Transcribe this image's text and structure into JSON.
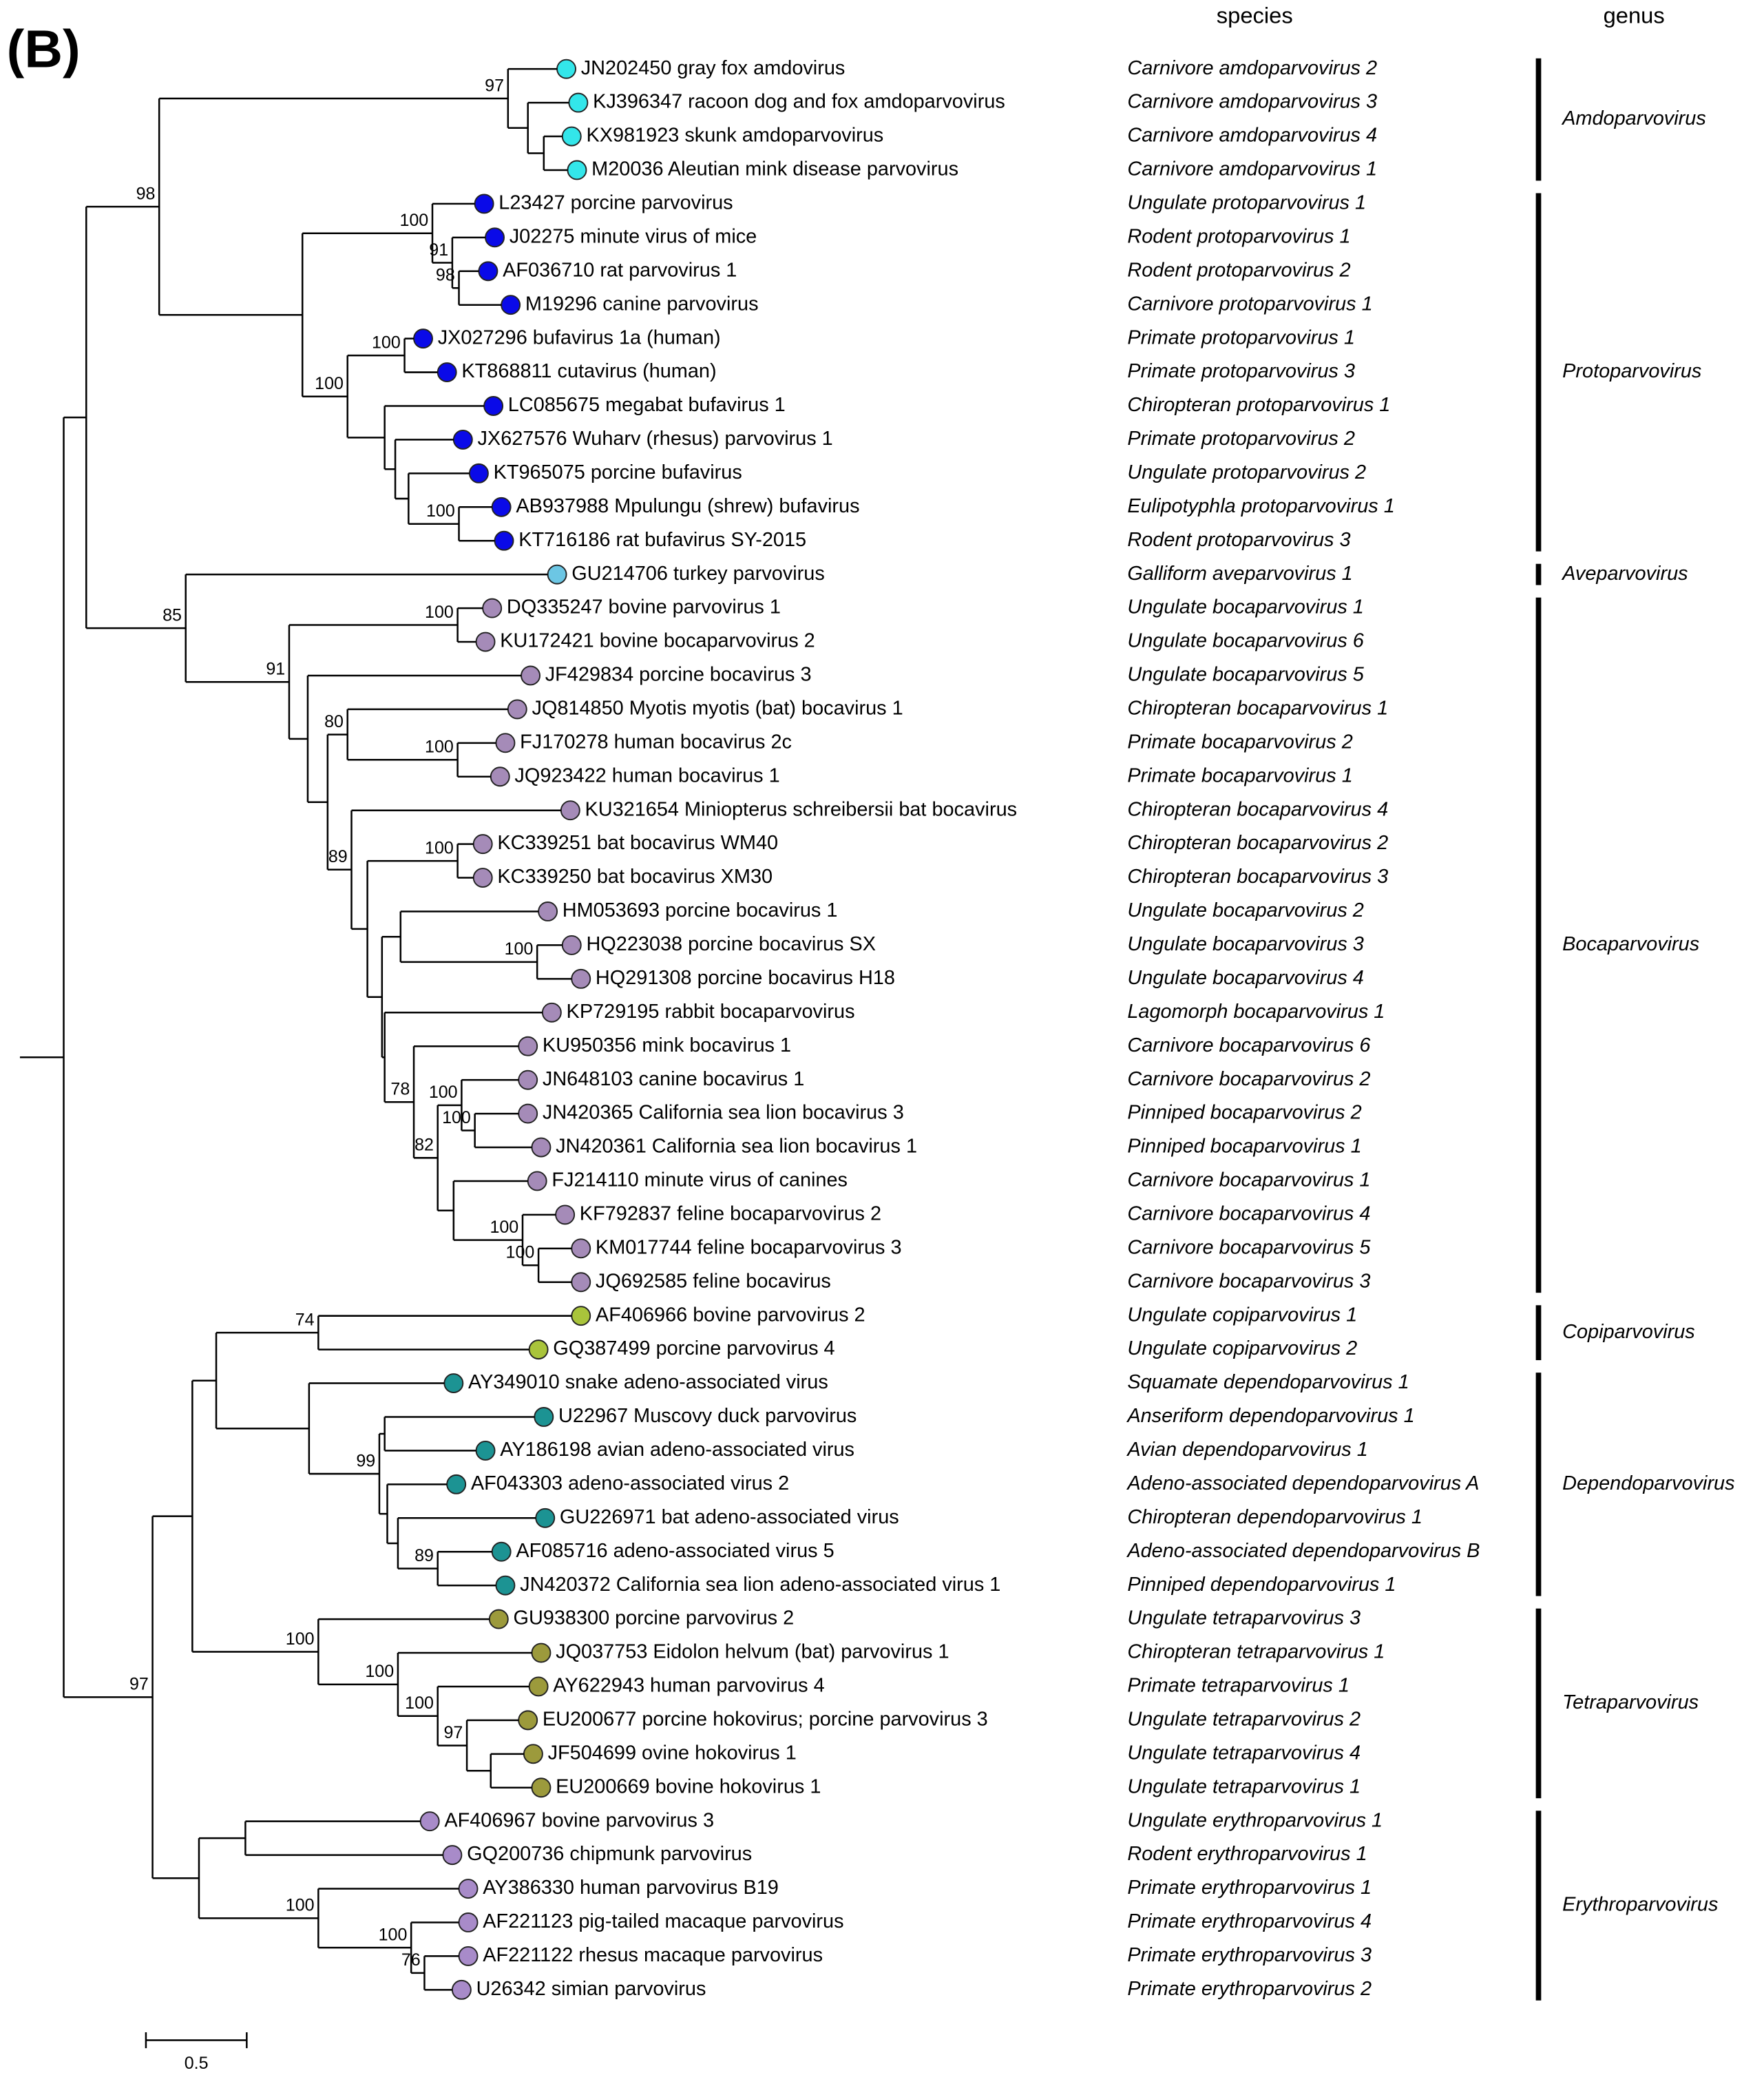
{
  "panel_label": "(B)",
  "headers": {
    "species": "species",
    "genus": "genus"
  },
  "genera": [
    {
      "name": "Amdoparvovirus",
      "color": "#33e6ea",
      "leaves": [
        {
          "label": "JN202450 gray fox amdovirus",
          "species": "Carnivore amdoparvovirus 2"
        },
        {
          "label": "KJ396347 racoon dog and fox amdoparvovirus",
          "species": "Carnivore amdoparvovirus 3"
        },
        {
          "label": "KX981923 skunk amdoparvovirus",
          "species": "Carnivore amdoparvovirus 4"
        },
        {
          "label": "M20036 Aleutian mink disease parvovirus",
          "species": "Carnivore amdoparvovirus 1"
        }
      ]
    },
    {
      "name": "Protoparvovirus",
      "color": "#0a0ae8",
      "leaves": [
        {
          "label": "L23427 porcine parvovirus",
          "species": "Ungulate protoparvovirus 1"
        },
        {
          "label": "J02275 minute virus of mice",
          "species": "Rodent protoparvovirus 1"
        },
        {
          "label": "AF036710 rat parvovirus 1",
          "species": "Rodent protoparvovirus 2"
        },
        {
          "label": "M19296 canine parvovirus",
          "species": "Carnivore protoparvovirus 1"
        },
        {
          "label": "JX027296 bufavirus 1a (human)",
          "species": "Primate protoparvovirus 1"
        },
        {
          "label": "KT868811 cutavirus (human)",
          "species": "Primate protoparvovirus 3"
        },
        {
          "label": "LC085675 megabat bufavirus 1",
          "species": "Chiropteran protoparvovirus 1"
        },
        {
          "label": "JX627576 Wuharv (rhesus) parvovirus 1",
          "species": "Primate protoparvovirus 2"
        },
        {
          "label": "KT965075 porcine bufavirus",
          "species": "Ungulate protoparvovirus 2"
        },
        {
          "label": "AB937988 Mpulungu (shrew) bufavirus",
          "species": "Eulipotyphla protoparvovirus 1"
        },
        {
          "label": "KT716186 rat bufavirus SY-2015",
          "species": "Rodent protoparvovirus 3"
        }
      ]
    },
    {
      "name": "Aveparvovirus",
      "color": "#6cc6e4",
      "leaves": [
        {
          "label": "GU214706 turkey parvovirus",
          "species": "Galliform aveparvovirus 1"
        }
      ]
    },
    {
      "name": "Bocaparvovirus",
      "color": "#a58bb8",
      "leaves": [
        {
          "label": "DQ335247 bovine parvovirus 1",
          "species": "Ungulate bocaparvovirus 1"
        },
        {
          "label": "KU172421 bovine bocaparvovirus 2",
          "species": "Ungulate bocaparvovirus 6"
        },
        {
          "label": "JF429834 porcine bocavirus 3",
          "species": "Ungulate bocaparvovirus 5"
        },
        {
          "label": "JQ814850 Myotis myotis (bat) bocavirus 1",
          "species": "Chiropteran bocaparvovirus 1"
        },
        {
          "label": "FJ170278 human bocavirus 2c",
          "species": "Primate bocaparvovirus 2"
        },
        {
          "label": "JQ923422 human bocavirus 1",
          "species": "Primate bocaparvovirus 1"
        },
        {
          "label": "KU321654 Miniopterus schreibersii bat bocavirus",
          "species": "Chiropteran bocaparvovirus 4"
        },
        {
          "label": "KC339251 bat bocavirus WM40",
          "species": "Chiropteran bocaparvovirus 2"
        },
        {
          "label": "KC339250 bat bocavirus XM30",
          "species": "Chiropteran bocaparvovirus 3"
        },
        {
          "label": "HM053693 porcine bocavirus 1",
          "species": "Ungulate bocaparvovirus 2"
        },
        {
          "label": "HQ223038 porcine bocavirus SX",
          "species": "Ungulate bocaparvovirus 3"
        },
        {
          "label": "HQ291308 porcine bocavirus H18",
          "species": "Ungulate bocaparvovirus 4"
        },
        {
          "label": "KP729195 rabbit bocaparvovirus",
          "species": "Lagomorph bocaparvovirus 1"
        },
        {
          "label": "KU950356 mink bocavirus 1",
          "species": "Carnivore bocaparvovirus 6"
        },
        {
          "label": "JN648103 canine bocavirus 1",
          "species": "Carnivore bocaparvovirus 2"
        },
        {
          "label": "JN420365 California sea lion bocavirus 3",
          "species": "Pinniped bocaparvovirus 2"
        },
        {
          "label": "JN420361 California sea lion bocavirus 1",
          "species": "Pinniped bocaparvovirus 1"
        },
        {
          "label": "FJ214110 minute virus of canines",
          "species": "Carnivore bocaparvovirus 1"
        },
        {
          "label": "KF792837 feline bocaparvovirus 2",
          "species": "Carnivore bocaparvovirus 4"
        },
        {
          "label": "KM017744 feline bocaparvovirus 3",
          "species": "Carnivore bocaparvovirus 5"
        },
        {
          "label": "JQ692585 feline bocavirus",
          "species": "Carnivore bocaparvovirus 3"
        }
      ]
    },
    {
      "name": "Copiparvovirus",
      "color": "#a9c43b",
      "leaves": [
        {
          "label": "AF406966 bovine parvovirus 2",
          "species": "Ungulate copiparvovirus 1"
        },
        {
          "label": "GQ387499 porcine parvovirus 4",
          "species": "Ungulate copiparvovirus 2"
        }
      ]
    },
    {
      "name": "Dependoparvovirus",
      "color": "#1c9393",
      "leaves": [
        {
          "label": "AY349010 snake adeno-associated virus",
          "species": "Squamate dependoparvovirus 1"
        },
        {
          "label": "U22967 Muscovy duck parvovirus",
          "species": "Anseriform dependoparvovirus 1"
        },
        {
          "label": "AY186198 avian adeno-associated virus",
          "species": "Avian dependoparvovirus 1"
        },
        {
          "label": "AF043303 adeno-associated virus 2",
          "species": "Adeno-associated dependoparvovirus A"
        },
        {
          "label": "GU226971 bat adeno-associated virus",
          "species": "Chiropteran dependoparvovirus 1"
        },
        {
          "label": "AF085716 adeno-associated virus 5",
          "species": "Adeno-associated dependoparvovirus B"
        },
        {
          "label": "JN420372 California sea lion adeno-associated virus 1",
          "species": "Pinniped dependoparvovirus 1"
        }
      ]
    },
    {
      "name": "Tetraparvovirus",
      "color": "#9c9a3c",
      "leaves": [
        {
          "label": "GU938300 porcine parvovirus 2",
          "species": "Ungulate tetraparvovirus 3"
        },
        {
          "label": "JQ037753 Eidolon helvum (bat) parvovirus 1",
          "species": "Chiropteran tetraparvovirus 1"
        },
        {
          "label": "AY622943 human parvovirus 4",
          "species": "Primate tetraparvovirus 1"
        },
        {
          "label": "EU200677 porcine hokovirus; porcine parvovirus 3",
          "species": "Ungulate tetraparvovirus 2"
        },
        {
          "label": "JF504699 ovine hokovirus 1",
          "species": "Ungulate tetraparvovirus 4"
        },
        {
          "label": "EU200669 bovine hokovirus 1",
          "species": "Ungulate tetraparvovirus 1"
        }
      ]
    },
    {
      "name": "Erythroparvovirus",
      "color": "#a88bc9",
      "leaves": [
        {
          "label": "AF406967 bovine parvovirus 3",
          "species": "Ungulate erythroparvovirus 1"
        },
        {
          "label": "GQ200736 chipmunk parvovirus",
          "species": "Rodent erythroparvovirus 1"
        },
        {
          "label": "AY386330 human parvovirus B19",
          "species": "Primate erythroparvovirus 1"
        },
        {
          "label": "AF221123 pig-tailed macaque parvovirus",
          "species": "Primate erythroparvovirus 4"
        },
        {
          "label": "AF221122 rhesus macaque parvovirus",
          "species": "Primate erythroparvovirus 3"
        },
        {
          "label": "U26342 simian parvovirus",
          "species": "Primate erythroparvovirus 2"
        }
      ]
    }
  ],
  "bootstraps": [
    97,
    98,
    100,
    91,
    98,
    100,
    100,
    100,
    85,
    100,
    91,
    80,
    100,
    89,
    100,
    100,
    100,
    78,
    100,
    82,
    100,
    100,
    74,
    99,
    89,
    100,
    100,
    100,
    97,
    100,
    100,
    76,
    97
  ],
  "scale_bar": "0.5"
}
